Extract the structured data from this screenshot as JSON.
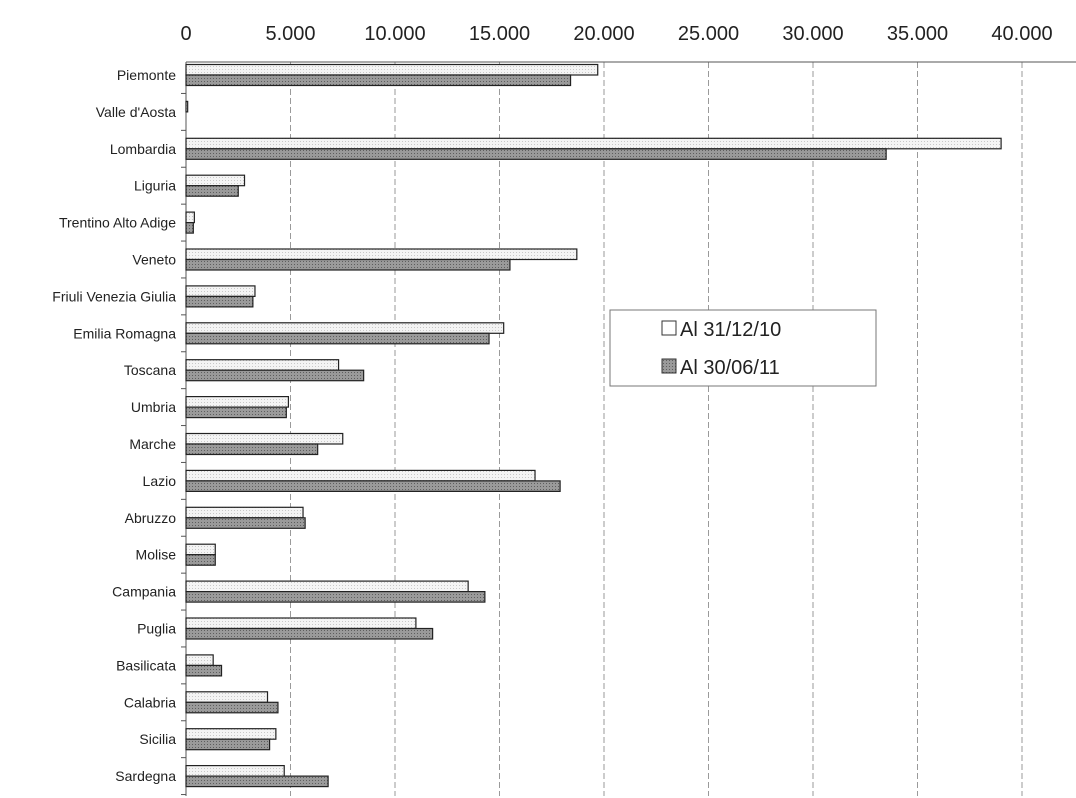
{
  "chart_data": {
    "type": "bar",
    "orientation": "horizontal",
    "title": "",
    "xlabel": "",
    "ylabel": "",
    "xlim": [
      0,
      40000
    ],
    "x_ticks": [
      "0",
      "5.000",
      "10.000",
      "15.000",
      "20.000",
      "25.000",
      "30.000",
      "35.000",
      "40.000"
    ],
    "x_axis_position": "top",
    "grid": true,
    "legend_position": "center-right",
    "categories": [
      "Piemonte",
      "Valle d'Aosta",
      "Lombardia",
      "Liguria",
      "Trentino Alto Adige",
      "Veneto",
      "Friuli Venezia Giulia",
      "Emilia Romagna",
      "Toscana",
      "Umbria",
      "Marche",
      "Lazio",
      "Abruzzo",
      "Molise",
      "Campania",
      "Puglia",
      "Basilicata",
      "Calabria",
      "Sicilia",
      "Sardegna"
    ],
    "series": [
      {
        "name": "Al 31/12/10",
        "color": "#f2f2f2",
        "values": [
          19700,
          80,
          39000,
          2800,
          400,
          18700,
          3300,
          15200,
          7300,
          4900,
          7500,
          16700,
          5600,
          1400,
          13500,
          11000,
          1300,
          3900,
          4300,
          4700
        ]
      },
      {
        "name": "Al 30/06/11",
        "color": "#8c8c8c",
        "values": [
          18400,
          0,
          33500,
          2500,
          350,
          15500,
          3200,
          14500,
          8500,
          4800,
          6300,
          17900,
          5700,
          1400,
          14300,
          11800,
          1700,
          4400,
          4000,
          6800
        ]
      }
    ]
  }
}
